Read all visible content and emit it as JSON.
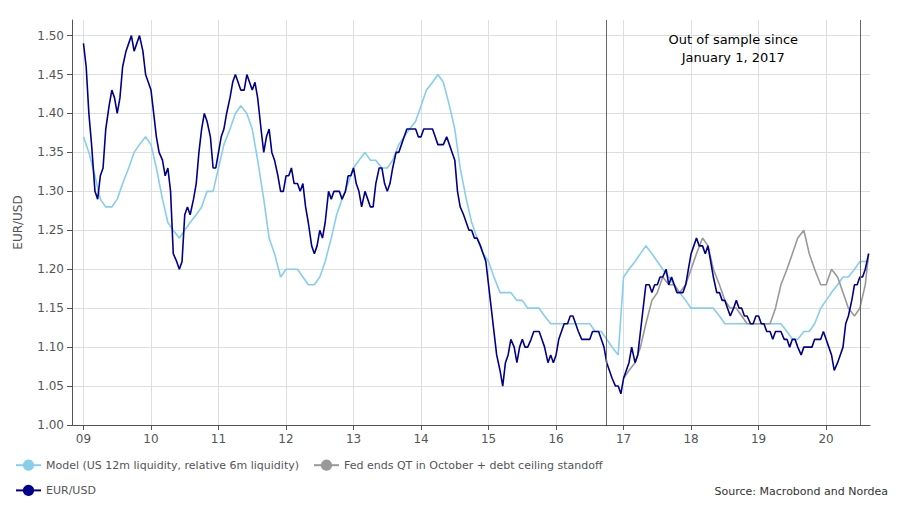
{
  "chart_data": {
    "type": "line",
    "title": "",
    "ylabel": "EUR/USD",
    "xlim": [
      2008.83,
      2020.65
    ],
    "ylim": [
      1.0,
      1.52
    ],
    "xticks": [
      {
        "value": 2009,
        "label": "09"
      },
      {
        "value": 2010,
        "label": "10"
      },
      {
        "value": 2011,
        "label": "11"
      },
      {
        "value": 2012,
        "label": "12"
      },
      {
        "value": 2013,
        "label": "13"
      },
      {
        "value": 2014,
        "label": "14"
      },
      {
        "value": 2015,
        "label": "15"
      },
      {
        "value": 2016,
        "label": "16"
      },
      {
        "value": 2017,
        "label": "17"
      },
      {
        "value": 2018,
        "label": "18"
      },
      {
        "value": 2019,
        "label": "19"
      },
      {
        "value": 2020,
        "label": "20"
      }
    ],
    "yticks": [
      {
        "value": 1.0,
        "label": "1.00"
      },
      1.05,
      {
        "value": 1.1,
        "label": "1.10"
      },
      1.15,
      {
        "value": 1.2,
        "label": "1.20"
      },
      1.25,
      {
        "value": 1.3,
        "label": "1.30"
      },
      1.35,
      {
        "value": 1.4,
        "label": "1.40"
      },
      1.45,
      {
        "value": 1.5,
        "label": "1.50"
      }
    ],
    "grid": true,
    "legend": "lower left",
    "annotations": [
      "Out of sample since\nJanuary 1, 2017"
    ],
    "source": "Source: Macrobond and Nordea",
    "vlines": [
      {
        "x": 2016.75,
        "color": "#666666"
      },
      {
        "x": 2020.5,
        "color": "#666666"
      }
    ],
    "series": [
      {
        "name": "Model (US 12m liquidity, relative 6m liquidity)",
        "color": "#87CEEB",
        "x": [
          2009.0,
          2009.08,
          2009.17,
          2009.25,
          2009.33,
          2009.42,
          2009.5,
          2009.58,
          2009.67,
          2009.75,
          2009.83,
          2009.92,
          2010.0,
          2010.08,
          2010.17,
          2010.25,
          2010.33,
          2010.42,
          2010.5,
          2010.58,
          2010.67,
          2010.75,
          2010.83,
          2010.92,
          2011.0,
          2011.08,
          2011.17,
          2011.25,
          2011.33,
          2011.42,
          2011.5,
          2011.58,
          2011.67,
          2011.75,
          2011.83,
          2011.92,
          2012.0,
          2012.08,
          2012.17,
          2012.25,
          2012.33,
          2012.42,
          2012.5,
          2012.58,
          2012.67,
          2012.75,
          2012.83,
          2012.92,
          2013.0,
          2013.08,
          2013.17,
          2013.25,
          2013.33,
          2013.42,
          2013.5,
          2013.58,
          2013.67,
          2013.75,
          2013.83,
          2013.92,
          2014.0,
          2014.08,
          2014.17,
          2014.25,
          2014.33,
          2014.42,
          2014.5,
          2014.58,
          2014.67,
          2014.75,
          2014.83,
          2014.92,
          2015.0,
          2015.08,
          2015.17,
          2015.25,
          2015.33,
          2015.42,
          2015.5,
          2015.58,
          2015.67,
          2015.75,
          2015.83,
          2015.92,
          2016.0,
          2016.08,
          2016.17,
          2016.25,
          2016.33,
          2016.42,
          2016.5,
          2016.58,
          2016.67,
          2016.75,
          2016.83,
          2016.92,
          2017.0,
          2017.08,
          2017.17,
          2017.25,
          2017.33,
          2017.42,
          2017.5,
          2017.58,
          2017.67,
          2017.75,
          2017.83,
          2017.92,
          2018.0,
          2018.08,
          2018.17,
          2018.25,
          2018.33,
          2018.42,
          2018.5,
          2018.58,
          2018.67,
          2018.75,
          2018.83,
          2018.92,
          2019.0,
          2019.08,
          2019.17,
          2019.25,
          2019.33,
          2019.42,
          2019.5,
          2019.58,
          2019.67,
          2019.75,
          2019.83,
          2019.92,
          2020.0,
          2020.08,
          2020.17,
          2020.25,
          2020.33,
          2020.42,
          2020.5,
          2020.58,
          2020.63
        ],
        "values": [
          1.37,
          1.35,
          1.32,
          1.29,
          1.28,
          1.28,
          1.29,
          1.31,
          1.33,
          1.35,
          1.36,
          1.37,
          1.36,
          1.33,
          1.29,
          1.26,
          1.25,
          1.24,
          1.25,
          1.26,
          1.27,
          1.28,
          1.3,
          1.3,
          1.33,
          1.36,
          1.38,
          1.4,
          1.41,
          1.4,
          1.38,
          1.34,
          1.29,
          1.24,
          1.22,
          1.19,
          1.2,
          1.2,
          1.2,
          1.19,
          1.18,
          1.18,
          1.19,
          1.21,
          1.24,
          1.27,
          1.29,
          1.31,
          1.33,
          1.34,
          1.35,
          1.34,
          1.34,
          1.33,
          1.33,
          1.34,
          1.36,
          1.37,
          1.38,
          1.39,
          1.41,
          1.43,
          1.44,
          1.45,
          1.44,
          1.41,
          1.38,
          1.33,
          1.29,
          1.26,
          1.24,
          1.22,
          1.21,
          1.19,
          1.17,
          1.17,
          1.17,
          1.16,
          1.16,
          1.15,
          1.15,
          1.15,
          1.14,
          1.13,
          1.13,
          1.13,
          1.13,
          1.13,
          1.13,
          1.13,
          1.13,
          1.12,
          1.12,
          1.11,
          1.1,
          1.09,
          1.19,
          1.2,
          1.21,
          1.22,
          1.23,
          1.22,
          1.21,
          1.2,
          1.19,
          1.18,
          1.17,
          1.16,
          1.15,
          1.15,
          1.15,
          1.15,
          1.15,
          1.14,
          1.13,
          1.13,
          1.13,
          1.13,
          1.13,
          1.13,
          1.13,
          1.13,
          1.13,
          1.13,
          1.13,
          1.12,
          1.11,
          1.11,
          1.12,
          1.12,
          1.13,
          1.15,
          1.16,
          1.17,
          1.18,
          1.19,
          1.19,
          1.2,
          1.21,
          1.21,
          1.21
        ]
      },
      {
        "name": "Fed ends QT in October + debt ceiling standoff",
        "color": "#999999",
        "x": [
          2017.0,
          2017.08,
          2017.17,
          2017.25,
          2017.33,
          2017.42,
          2017.5,
          2017.58,
          2017.67,
          2017.75,
          2017.83,
          2017.92,
          2018.0,
          2018.08,
          2018.17,
          2018.25,
          2018.33,
          2018.42,
          2018.5,
          2018.58,
          2018.67,
          2018.75,
          2018.83,
          2018.92,
          2019.0,
          2019.08,
          2019.17,
          2019.25,
          2019.33,
          2019.42,
          2019.5,
          2019.58,
          2019.67,
          2019.75,
          2019.83,
          2019.92,
          2020.0,
          2020.08,
          2020.17,
          2020.25,
          2020.33,
          2020.42,
          2020.5,
          2020.58,
          2020.63
        ],
        "values": [
          1.06,
          1.07,
          1.08,
          1.1,
          1.13,
          1.16,
          1.17,
          1.19,
          1.18,
          1.18,
          1.17,
          1.18,
          1.2,
          1.22,
          1.24,
          1.23,
          1.2,
          1.18,
          1.16,
          1.15,
          1.15,
          1.14,
          1.13,
          1.13,
          1.13,
          1.13,
          1.13,
          1.15,
          1.18,
          1.2,
          1.22,
          1.24,
          1.25,
          1.22,
          1.2,
          1.18,
          1.18,
          1.2,
          1.19,
          1.17,
          1.15,
          1.14,
          1.15,
          1.18,
          1.22
        ]
      },
      {
        "name": "EUR/USD",
        "color": "#00008B",
        "x": [
          2009.0,
          2009.04,
          2009.08,
          2009.12,
          2009.17,
          2009.21,
          2009.25,
          2009.29,
          2009.33,
          2009.38,
          2009.42,
          2009.46,
          2009.5,
          2009.54,
          2009.58,
          2009.63,
          2009.67,
          2009.71,
          2009.75,
          2009.79,
          2009.83,
          2009.88,
          2009.92,
          2009.96,
          2010.0,
          2010.04,
          2010.08,
          2010.12,
          2010.17,
          2010.21,
          2010.25,
          2010.29,
          2010.33,
          2010.38,
          2010.42,
          2010.46,
          2010.5,
          2010.54,
          2010.58,
          2010.63,
          2010.67,
          2010.71,
          2010.75,
          2010.79,
          2010.83,
          2010.88,
          2010.92,
          2010.96,
          2011.0,
          2011.04,
          2011.08,
          2011.12,
          2011.17,
          2011.21,
          2011.25,
          2011.29,
          2011.33,
          2011.38,
          2011.42,
          2011.46,
          2011.5,
          2011.54,
          2011.58,
          2011.63,
          2011.67,
          2011.71,
          2011.75,
          2011.79,
          2011.83,
          2011.88,
          2011.92,
          2011.96,
          2012.0,
          2012.04,
          2012.08,
          2012.12,
          2012.17,
          2012.21,
          2012.25,
          2012.29,
          2012.33,
          2012.38,
          2012.42,
          2012.46,
          2012.5,
          2012.54,
          2012.58,
          2012.63,
          2012.67,
          2012.71,
          2012.75,
          2012.79,
          2012.83,
          2012.88,
          2012.92,
          2012.96,
          2013.0,
          2013.04,
          2013.08,
          2013.12,
          2013.17,
          2013.21,
          2013.25,
          2013.29,
          2013.33,
          2013.38,
          2013.42,
          2013.46,
          2013.5,
          2013.54,
          2013.58,
          2013.63,
          2013.67,
          2013.71,
          2013.75,
          2013.79,
          2013.83,
          2013.88,
          2013.92,
          2013.96,
          2014.0,
          2014.04,
          2014.08,
          2014.12,
          2014.17,
          2014.21,
          2014.25,
          2014.29,
          2014.33,
          2014.38,
          2014.42,
          2014.46,
          2014.5,
          2014.54,
          2014.58,
          2014.63,
          2014.67,
          2014.71,
          2014.75,
          2014.79,
          2014.83,
          2014.88,
          2014.92,
          2014.96,
          2015.0,
          2015.04,
          2015.08,
          2015.12,
          2015.17,
          2015.21,
          2015.25,
          2015.29,
          2015.33,
          2015.38,
          2015.42,
          2015.46,
          2015.5,
          2015.54,
          2015.58,
          2015.63,
          2015.67,
          2015.71,
          2015.75,
          2015.79,
          2015.83,
          2015.88,
          2015.92,
          2015.96,
          2016.0,
          2016.04,
          2016.08,
          2016.12,
          2016.17,
          2016.21,
          2016.25,
          2016.29,
          2016.33,
          2016.38,
          2016.42,
          2016.46,
          2016.5,
          2016.54,
          2016.58,
          2016.63,
          2016.67,
          2016.71,
          2016.75,
          2016.79,
          2016.83,
          2016.88,
          2016.92,
          2016.96,
          2017.0,
          2017.04,
          2017.08,
          2017.12,
          2017.17,
          2017.21,
          2017.25,
          2017.29,
          2017.33,
          2017.38,
          2017.42,
          2017.46,
          2017.5,
          2017.54,
          2017.58,
          2017.63,
          2017.67,
          2017.71,
          2017.75,
          2017.79,
          2017.83,
          2017.88,
          2017.92,
          2017.96,
          2018.0,
          2018.04,
          2018.08,
          2018.12,
          2018.17,
          2018.21,
          2018.25,
          2018.29,
          2018.33,
          2018.38,
          2018.42,
          2018.46,
          2018.5,
          2018.54,
          2018.58,
          2018.63,
          2018.67,
          2018.71,
          2018.75,
          2018.79,
          2018.83,
          2018.88,
          2018.92,
          2018.96,
          2019.0,
          2019.04,
          2019.08,
          2019.12,
          2019.17,
          2019.21,
          2019.25,
          2019.29,
          2019.33,
          2019.38,
          2019.42,
          2019.46,
          2019.5,
          2019.54,
          2019.58,
          2019.63,
          2019.67,
          2019.71,
          2019.75,
          2019.79,
          2019.83,
          2019.88,
          2019.92,
          2019.96,
          2020.0,
          2020.04,
          2020.08,
          2020.12,
          2020.17,
          2020.21,
          2020.25,
          2020.29,
          2020.33,
          2020.38,
          2020.42,
          2020.46,
          2020.5,
          2020.54,
          2020.58,
          2020.63
        ],
        "values": [
          1.49,
          1.46,
          1.4,
          1.36,
          1.3,
          1.29,
          1.32,
          1.33,
          1.38,
          1.41,
          1.43,
          1.42,
          1.4,
          1.42,
          1.46,
          1.48,
          1.49,
          1.5,
          1.48,
          1.49,
          1.5,
          1.48,
          1.45,
          1.44,
          1.43,
          1.4,
          1.37,
          1.35,
          1.34,
          1.32,
          1.33,
          1.3,
          1.22,
          1.21,
          1.2,
          1.21,
          1.27,
          1.28,
          1.27,
          1.29,
          1.31,
          1.35,
          1.38,
          1.4,
          1.39,
          1.37,
          1.33,
          1.33,
          1.35,
          1.37,
          1.38,
          1.4,
          1.42,
          1.44,
          1.45,
          1.44,
          1.43,
          1.43,
          1.45,
          1.44,
          1.43,
          1.44,
          1.42,
          1.38,
          1.35,
          1.37,
          1.38,
          1.35,
          1.34,
          1.32,
          1.3,
          1.3,
          1.32,
          1.32,
          1.33,
          1.31,
          1.31,
          1.3,
          1.31,
          1.28,
          1.26,
          1.23,
          1.22,
          1.23,
          1.25,
          1.24,
          1.26,
          1.3,
          1.29,
          1.3,
          1.3,
          1.3,
          1.29,
          1.3,
          1.32,
          1.32,
          1.33,
          1.31,
          1.3,
          1.28,
          1.3,
          1.29,
          1.28,
          1.28,
          1.31,
          1.33,
          1.33,
          1.31,
          1.3,
          1.31,
          1.33,
          1.35,
          1.35,
          1.36,
          1.37,
          1.38,
          1.38,
          1.38,
          1.38,
          1.37,
          1.37,
          1.38,
          1.38,
          1.38,
          1.38,
          1.37,
          1.36,
          1.36,
          1.36,
          1.37,
          1.36,
          1.35,
          1.34,
          1.3,
          1.28,
          1.27,
          1.26,
          1.25,
          1.25,
          1.24,
          1.24,
          1.23,
          1.22,
          1.21,
          1.18,
          1.15,
          1.12,
          1.09,
          1.07,
          1.05,
          1.08,
          1.09,
          1.11,
          1.1,
          1.08,
          1.1,
          1.11,
          1.1,
          1.1,
          1.11,
          1.12,
          1.12,
          1.12,
          1.11,
          1.1,
          1.08,
          1.09,
          1.08,
          1.09,
          1.11,
          1.12,
          1.13,
          1.13,
          1.14,
          1.14,
          1.13,
          1.12,
          1.11,
          1.11,
          1.11,
          1.11,
          1.12,
          1.12,
          1.12,
          1.11,
          1.1,
          1.08,
          1.07,
          1.06,
          1.05,
          1.05,
          1.04,
          1.06,
          1.07,
          1.08,
          1.1,
          1.08,
          1.09,
          1.12,
          1.15,
          1.18,
          1.18,
          1.17,
          1.18,
          1.18,
          1.19,
          1.19,
          1.2,
          1.18,
          1.19,
          1.18,
          1.17,
          1.17,
          1.17,
          1.18,
          1.2,
          1.22,
          1.23,
          1.24,
          1.23,
          1.23,
          1.22,
          1.23,
          1.21,
          1.19,
          1.17,
          1.17,
          1.16,
          1.16,
          1.15,
          1.14,
          1.15,
          1.16,
          1.15,
          1.15,
          1.14,
          1.14,
          1.13,
          1.13,
          1.14,
          1.14,
          1.13,
          1.13,
          1.12,
          1.12,
          1.11,
          1.12,
          1.12,
          1.12,
          1.11,
          1.11,
          1.1,
          1.11,
          1.11,
          1.1,
          1.09,
          1.1,
          1.1,
          1.1,
          1.1,
          1.11,
          1.11,
          1.11,
          1.12,
          1.11,
          1.1,
          1.09,
          1.07,
          1.08,
          1.09,
          1.1,
          1.13,
          1.14,
          1.16,
          1.18,
          1.18,
          1.19,
          1.19,
          1.2,
          1.22
        ]
      }
    ]
  }
}
